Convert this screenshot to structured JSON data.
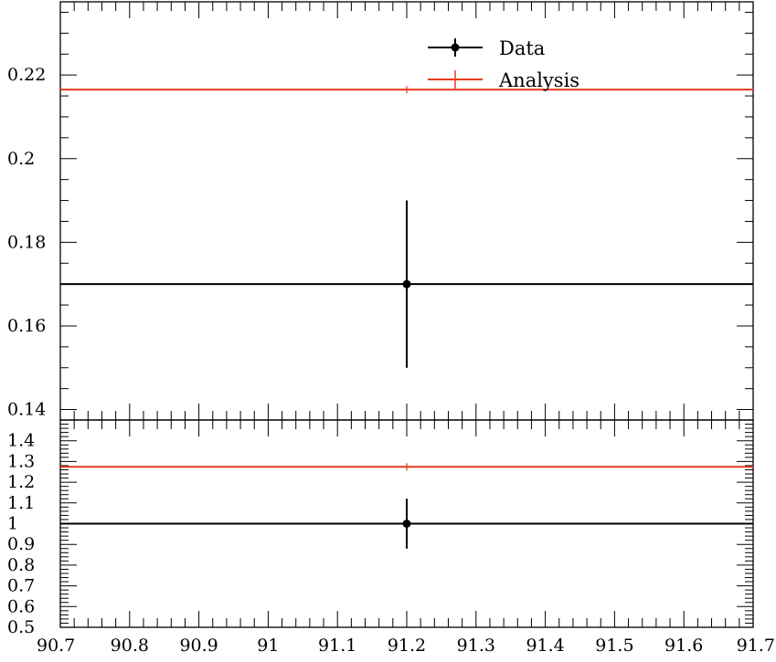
{
  "chart_data": [
    {
      "panel": "main",
      "type": "scatter",
      "title": "",
      "xlabel": "",
      "ylabel": "",
      "xlim": [
        90.7,
        91.7
      ],
      "ylim": [
        0.1375,
        0.2375
      ],
      "yticks_major": [
        0.14,
        0.16,
        0.18,
        0.2,
        0.22
      ],
      "ytick_labels": [
        "0.14",
        "0.16",
        "0.18",
        "0.2",
        "0.22"
      ],
      "grid": false,
      "legend": "top-right",
      "series": [
        {
          "name": "Data",
          "color": "#000000",
          "marker": "circle",
          "x": 91.2,
          "x_err": [
            90.7,
            91.7
          ],
          "y": 0.17,
          "y_err": [
            0.15,
            0.19
          ]
        },
        {
          "name": "Analysis",
          "color": "#e8391b",
          "marker": "none",
          "x": 91.2,
          "x_err": [
            90.7,
            91.7
          ],
          "y": 0.2165,
          "y_err": [
            0.2165,
            0.2165
          ]
        }
      ]
    },
    {
      "panel": "ratio",
      "type": "scatter",
      "xlim": [
        90.7,
        91.7
      ],
      "ylim": [
        0.5,
        1.5
      ],
      "yticks_major": [
        0.5,
        0.6,
        0.7,
        0.8,
        0.9,
        1,
        1.1,
        1.2,
        1.3,
        1.4
      ],
      "ytick_labels": [
        "0.5",
        "0.6",
        "0.7",
        "0.8",
        "0.9",
        "1",
        "1.1",
        "1.2",
        "1.3",
        "1.4"
      ],
      "xticks_major": [
        90.7,
        90.8,
        90.9,
        91,
        91.1,
        91.2,
        91.3,
        91.4,
        91.5,
        91.6,
        91.7
      ],
      "xtick_labels": [
        "90.7",
        "90.8",
        "90.9",
        "91",
        "91.1",
        "91.2",
        "91.3",
        "91.4",
        "91.5",
        "91.6",
        "91.7"
      ],
      "grid": false,
      "series": [
        {
          "name": "Data",
          "color": "#000000",
          "marker": "circle",
          "x": 91.2,
          "x_err": [
            90.7,
            91.7
          ],
          "y": 1.0,
          "y_err": [
            0.88,
            1.12
          ]
        },
        {
          "name": "Analysis",
          "color": "#e8391b",
          "marker": "none",
          "x": 91.2,
          "x_err": [
            90.7,
            91.7
          ],
          "y": 1.274,
          "y_err": [
            1.274,
            1.274
          ]
        }
      ]
    }
  ]
}
